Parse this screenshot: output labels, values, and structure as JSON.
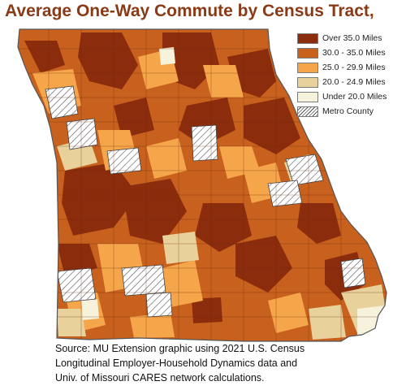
{
  "title": "Average One-Way Commute by Census Tract,",
  "legend": {
    "items": [
      {
        "label": "Over 35.0 Miles",
        "color": "#8b2d0c"
      },
      {
        "label": "30.0 - 35.0 Miles",
        "color": "#c8601e"
      },
      {
        "label": "25.0 - 29.9 Miles",
        "color": "#f5a54a"
      },
      {
        "label": "20.0 - 24.9 Miles",
        "color": "#e8d19a"
      },
      {
        "label": "Under 20.0 Miles",
        "color": "#f7f2dc"
      },
      {
        "label": "Metro County",
        "color": "hatch"
      }
    ]
  },
  "source": {
    "line1": "Source: MU Extension graphic using 2021 U.S. Census",
    "line2": "Longitudinal Employer-Household Dynamics data and",
    "line3": "Univ. of Missouri CARES network calculations."
  }
}
